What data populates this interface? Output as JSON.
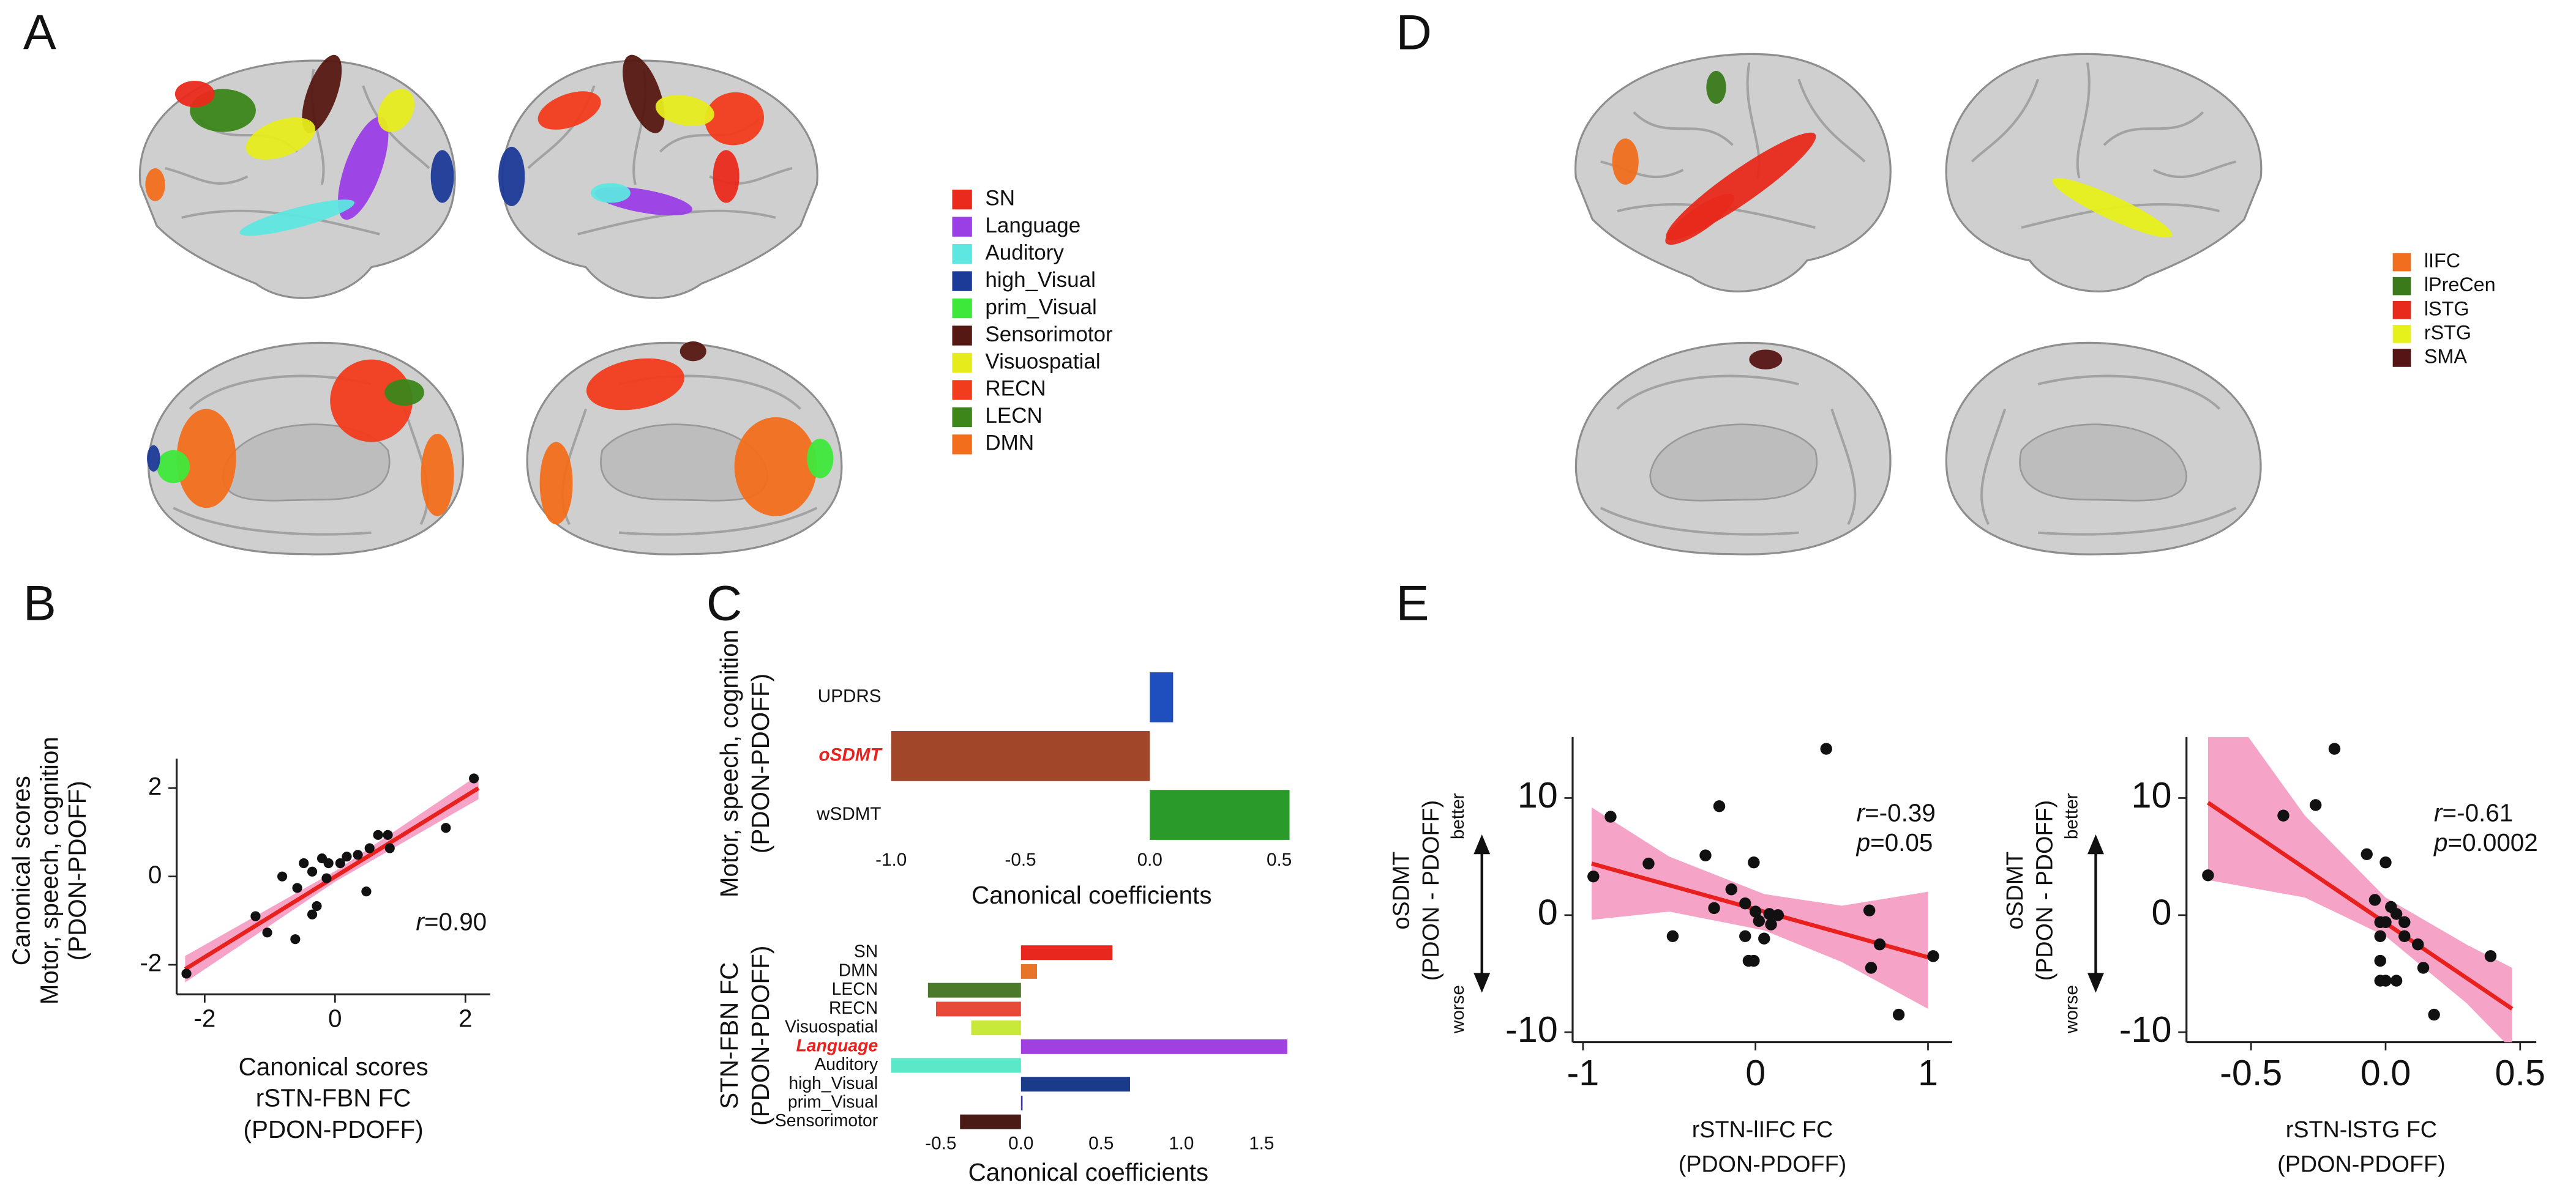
{
  "panel_labels": [
    "A",
    "B",
    "C",
    "D",
    "E"
  ],
  "legend_a": {
    "items": [
      {
        "name": "SN",
        "color": "#ea2a1c"
      },
      {
        "name": "Language",
        "color": "#9a3ee6"
      },
      {
        "name": "Auditory",
        "color": "#5ee6e0"
      },
      {
        "name": "high_Visual",
        "color": "#1c3a98"
      },
      {
        "name": "prim_Visual",
        "color": "#3ee83a"
      },
      {
        "name": "Sensorimotor",
        "color": "#561812"
      },
      {
        "name": "Visuospatial",
        "color": "#e6ec1c"
      },
      {
        "name": "RECN",
        "color": "#f23c1e"
      },
      {
        "name": "LECN",
        "color": "#3c861a"
      },
      {
        "name": "DMN",
        "color": "#f26e1c"
      }
    ]
  },
  "legend_d": {
    "items": [
      {
        "name": "lIFC",
        "color": "#f06e1e"
      },
      {
        "name": "lPreCen",
        "color": "#3a7a1a"
      },
      {
        "name": "lSTG",
        "color": "#e82a1c"
      },
      {
        "name": "rSTG",
        "color": "#e6f01a"
      },
      {
        "name": "SMA",
        "color": "#561414"
      }
    ]
  },
  "chart_data": [
    {
      "type": "scatter",
      "xlabel": [
        "Canonical scores",
        "rSTN-FBN FC",
        "(PDON-PDOFF)"
      ],
      "ylabel": [
        "Canonical scores",
        "Motor, speech, cognition",
        "(PDON-PDOFF)"
      ],
      "x": [
        2.13,
        1.7,
        0.81,
        0.66,
        0.84,
        0.53,
        0.35,
        0.18,
        0.08,
        -0.1,
        -0.2,
        -0.48,
        -0.35,
        -0.13,
        -0.81,
        -0.58,
        -0.28,
        -0.35,
        0.48,
        -1.22,
        -1.04,
        -0.61,
        -2.28
      ],
      "y": [
        2.22,
        1.1,
        0.94,
        0.94,
        0.64,
        0.64,
        0.49,
        0.45,
        0.3,
        0.3,
        0.41,
        0.3,
        0.11,
        -0.04,
        0,
        -0.26,
        -0.67,
        -0.86,
        -0.34,
        -0.9,
        -1.27,
        -1.42,
        -2.2
      ],
      "color": "#111111",
      "xlim": [
        -2.43,
        2.38
      ],
      "ylim": [
        -2.67,
        2.67
      ],
      "xticks": [
        -2,
        0,
        2
      ],
      "yticks": [
        -2,
        0,
        2
      ],
      "fit_line": {
        "x": [
          -2.3,
          2.2
        ],
        "y": [
          -2.1,
          2.0
        ],
        "color": "#e8201e"
      },
      "ci_band": {
        "x": [
          -2.3,
          0,
          2.2
        ],
        "lower": [
          -2.4,
          -0.12,
          1.75
        ],
        "upper": [
          -1.8,
          0.12,
          2.3
        ],
        "color": "#f5a3c7"
      },
      "annotations": [
        {
          "symbol": "r",
          "text": "=0.90"
        }
      ]
    },
    {
      "type": "hbar",
      "categories": [
        "UPDRS",
        "oSDMT",
        "wSDMT"
      ],
      "values": [
        0.09,
        -1.0,
        0.54
      ],
      "colors": [
        "#1f4fbf",
        "#a2462a",
        "#2a9a2a"
      ],
      "highlighted": [
        false,
        true,
        false
      ],
      "highlight_color": "#e8201e",
      "xlim": [
        -1.0,
        0.55
      ],
      "xticks": [
        {
          "value": -1,
          "label": "-1.0"
        },
        -0.5,
        {
          "value": 0,
          "label": "0.0"
        },
        0.5
      ],
      "xlabel": "Canonical coefficients",
      "ylabel": [
        "Motor, speech, cognition",
        "(PDON-PDOFF)"
      ]
    },
    {
      "type": "hbar",
      "categories": [
        "SN",
        "DMN",
        "LECN",
        "RECN",
        "Visuospatial",
        "Language",
        "Auditory",
        "high_Visual",
        "prim_Visual",
        "Sensorimotor"
      ],
      "values": [
        0.57,
        0.1,
        -0.58,
        -0.53,
        -0.31,
        1.66,
        -0.81,
        0.68,
        0.01,
        -0.38
      ],
      "colors": [
        "#e8281e",
        "#e8742a",
        "#4a7a2a",
        "#e84a3a",
        "#c8e83a",
        "#a040e0",
        "#5ae8c8",
        "#1a3a8a",
        "#3a3a9a",
        "#4a1a14"
      ],
      "highlighted": [
        false,
        false,
        false,
        false,
        false,
        true,
        false,
        false,
        false,
        false
      ],
      "highlight_color": "#e8201e",
      "xlim": [
        -0.83,
        1.67
      ],
      "xticks": [
        -0.5,
        {
          "value": 0,
          "label": "0.0"
        },
        0.5,
        {
          "value": 1,
          "label": "1.0"
        },
        1.5
      ],
      "xlabel": "Canonical coefficients",
      "ylabel": [
        "STN-FBN FC",
        "(PDON-PDOFF)"
      ]
    },
    {
      "type": "scatter",
      "xlabel": [
        "rSTN-lIFC FC",
        "(PDON-PDOFF)"
      ],
      "ylabel": [
        "oSDMT",
        "(PDON - PDOFF)"
      ],
      "direction_labels": [
        "better",
        "worse"
      ],
      "x": [
        -0.94,
        -0.84,
        -0.62,
        -0.48,
        -0.21,
        -0.29,
        -0.24,
        -0.14,
        -0.01,
        -0.06,
        0,
        0.02,
        0.08,
        0.09,
        0.05,
        -0.06,
        -0.04,
        -0.01,
        0.13,
        0.41,
        0.66,
        0.72,
        0.67,
        0.83,
        1.03
      ],
      "y": [
        3.3,
        8.4,
        4.4,
        -1.8,
        9.3,
        5.1,
        0.6,
        2.2,
        4.5,
        1.0,
        0.3,
        -0.5,
        0.1,
        -0.8,
        -2.0,
        -1.8,
        -3.9,
        -3.9,
        0,
        14.2,
        0.4,
        -2.5,
        -4.5,
        -8.5,
        -3.5
      ],
      "color": "#111111",
      "xlim": [
        -1.06,
        1.14
      ],
      "ylim": [
        -10.85,
        15.2
      ],
      "xticks": [
        -1,
        0,
        1
      ],
      "yticks": [
        -10,
        0,
        10
      ],
      "fit_line": {
        "x": [
          -0.95,
          1.0
        ],
        "y": [
          4.4,
          -3.6
        ],
        "color": "#e8201e"
      },
      "ci_band": {
        "x": [
          -0.95,
          -0.5,
          0.05,
          0.5,
          1.0
        ],
        "lower": [
          -0.4,
          0.3,
          -1.3,
          -4.0,
          -8.0
        ],
        "upper": [
          9.2,
          5.0,
          1.8,
          0.8,
          2.0
        ],
        "color": "#f5a3c7"
      },
      "annotations": [
        {
          "symbol": "r",
          "text": "=-0.39"
        },
        {
          "symbol": "p",
          "text": "=0.05"
        }
      ]
    },
    {
      "type": "scatter",
      "xlabel": [
        "rSTN-lSTG FC",
        "(PDON-PDOFF)"
      ],
      "ylabel": [
        "oSDMT",
        "(PDON - PDOFF)"
      ],
      "direction_labels": [
        "better",
        "worse"
      ],
      "x": [
        -0.66,
        -0.38,
        -0.26,
        -0.19,
        -0.07,
        -0.04,
        -0.02,
        0.0,
        0.02,
        0.04,
        0,
        0.07,
        -0.02,
        0.07,
        -0.02,
        0,
        0.04,
        -0.02,
        0.12,
        0.14,
        0.18,
        0.39
      ],
      "y": [
        3.4,
        8.5,
        9.4,
        14.2,
        5.2,
        1.3,
        -0.6,
        4.5,
        0.7,
        0.1,
        -0.6,
        -1.8,
        -1.8,
        -0.6,
        -3.9,
        -5.6,
        -5.6,
        -5.6,
        -2.5,
        -4.5,
        -8.5,
        -3.5
      ],
      "color": "#111111",
      "xlim": [
        -0.74,
        0.56
      ],
      "ylim": [
        -10.85,
        15.2
      ],
      "xticks": [
        -0.5,
        {
          "value": 0,
          "label": "0.0"
        },
        0.5
      ],
      "yticks": [
        -10,
        0,
        10
      ],
      "fit_line": {
        "x": [
          -0.66,
          0.47
        ],
        "y": [
          9.6,
          -8.0
        ],
        "color": "#e8201e"
      },
      "ci_band": {
        "x": [
          -0.66,
          -0.3,
          0,
          0.3,
          0.47
        ],
        "lower": [
          3.0,
          1.5,
          -1.8,
          -7.5,
          -11.5
        ],
        "upper": [
          20,
          8.5,
          1.5,
          -2.5,
          -4.5
        ],
        "color": "#f5a3c7"
      },
      "annotations": [
        {
          "symbol": "r",
          "text": "=-0.61"
        },
        {
          "symbol": "p",
          "text": "=0.0002"
        }
      ]
    }
  ]
}
